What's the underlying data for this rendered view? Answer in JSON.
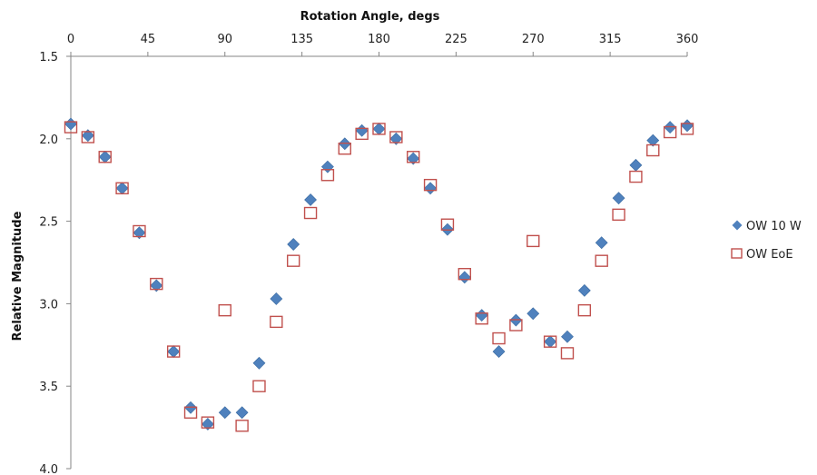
{
  "chart_data": {
    "type": "scatter",
    "xlabel": "Rotation Angle, degs",
    "ylabel": "Relative Magnitude",
    "xlim": [
      0,
      360
    ],
    "ylim": [
      1.5,
      4.0
    ],
    "y_inverted": true,
    "x_axis_position": "top",
    "x_ticks": [
      "0",
      "45",
      "90",
      "135",
      "180",
      "225",
      "270",
      "315",
      "360"
    ],
    "y_ticks": [
      "1.5",
      "2.0",
      "2.5",
      "3.0",
      "3.5",
      "4.0"
    ],
    "grid": false,
    "legend_position": "right",
    "series": [
      {
        "name": "OW 10 W",
        "marker": "diamond",
        "color": "#4F81BD",
        "x": [
          0,
          10,
          20,
          30,
          40,
          50,
          60,
          70,
          80,
          90,
          100,
          110,
          120,
          130,
          140,
          150,
          160,
          170,
          180,
          190,
          200,
          210,
          220,
          230,
          240,
          250,
          260,
          270,
          280,
          290,
          300,
          310,
          320,
          330,
          340,
          350,
          360
        ],
        "y": [
          1.91,
          1.98,
          2.11,
          2.3,
          2.57,
          2.89,
          3.29,
          3.63,
          3.73,
          3.66,
          3.66,
          3.36,
          2.97,
          2.64,
          2.37,
          2.17,
          2.03,
          1.95,
          1.94,
          2.0,
          2.12,
          2.3,
          2.55,
          2.84,
          3.07,
          3.29,
          3.1,
          3.06,
          3.23,
          3.2,
          2.92,
          2.63,
          2.36,
          2.16,
          2.01,
          1.93,
          1.92
        ]
      },
      {
        "name": "OW EoE",
        "marker": "square-open",
        "color": "#C0504D",
        "x": [
          0,
          10,
          20,
          30,
          40,
          50,
          60,
          70,
          80,
          90,
          100,
          110,
          120,
          130,
          140,
          150,
          160,
          170,
          180,
          190,
          200,
          210,
          220,
          230,
          240,
          250,
          260,
          270,
          280,
          290,
          300,
          310,
          320,
          330,
          340,
          350,
          360
        ],
        "y": [
          1.93,
          1.99,
          2.11,
          2.3,
          2.56,
          2.88,
          3.29,
          3.66,
          3.72,
          3.04,
          3.74,
          3.5,
          3.11,
          2.74,
          2.45,
          2.22,
          2.06,
          1.97,
          1.94,
          1.99,
          2.11,
          2.28,
          2.52,
          2.82,
          3.09,
          3.21,
          3.13,
          2.62,
          3.23,
          3.3,
          3.04,
          2.74,
          2.46,
          2.23,
          2.07,
          1.96,
          1.94
        ]
      }
    ]
  }
}
